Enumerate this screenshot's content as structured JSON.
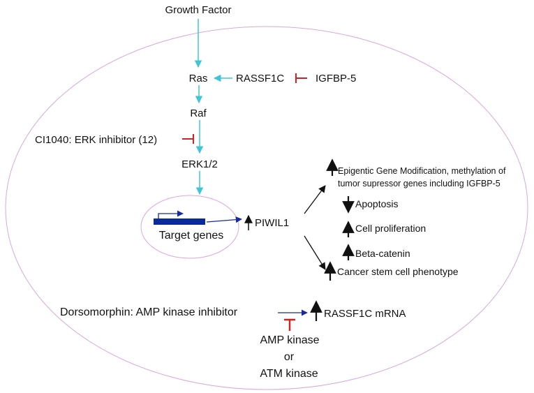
{
  "labels": {
    "growth_factor": "Growth Factor",
    "ras": "Ras",
    "rassf1c": "RASSF1C",
    "igfbp5": "IGFBP-5",
    "raf": "Raf",
    "ci1040": "CI1040: ERK inhibitor (12)",
    "erk": "ERK1/2",
    "target_genes": "Target genes",
    "piwil1": "PIWIL1",
    "epigenetic_line1": "Epigentic Gene Modification,  methylation of",
    "epigenetic_line2": "tumor supressor genes  including IGFBP-5",
    "apoptosis": "Apoptosis",
    "cell_proliferation": "Cell proliferation",
    "beta_catenin": "Beta-catenin",
    "cancer_stem": "Cancer stem cell phenotype",
    "dorsomorphin": "Dorsomorphin: AMP kinase inhibitor",
    "rassf1c_mrna": "RASSF1C mRNA",
    "amp_kinase": "AMP kinase",
    "or": "or",
    "atm_kinase": "ATM kinase"
  },
  "colors": {
    "activation_arrow": "#3ec6d6",
    "inhibition": "#d62020",
    "transcription_arrow": "#1a2a9a",
    "gene_box": "#0b2a9a",
    "membrane": "#d9a8d9",
    "text": "#111111",
    "effect_arrow": "#111111"
  }
}
